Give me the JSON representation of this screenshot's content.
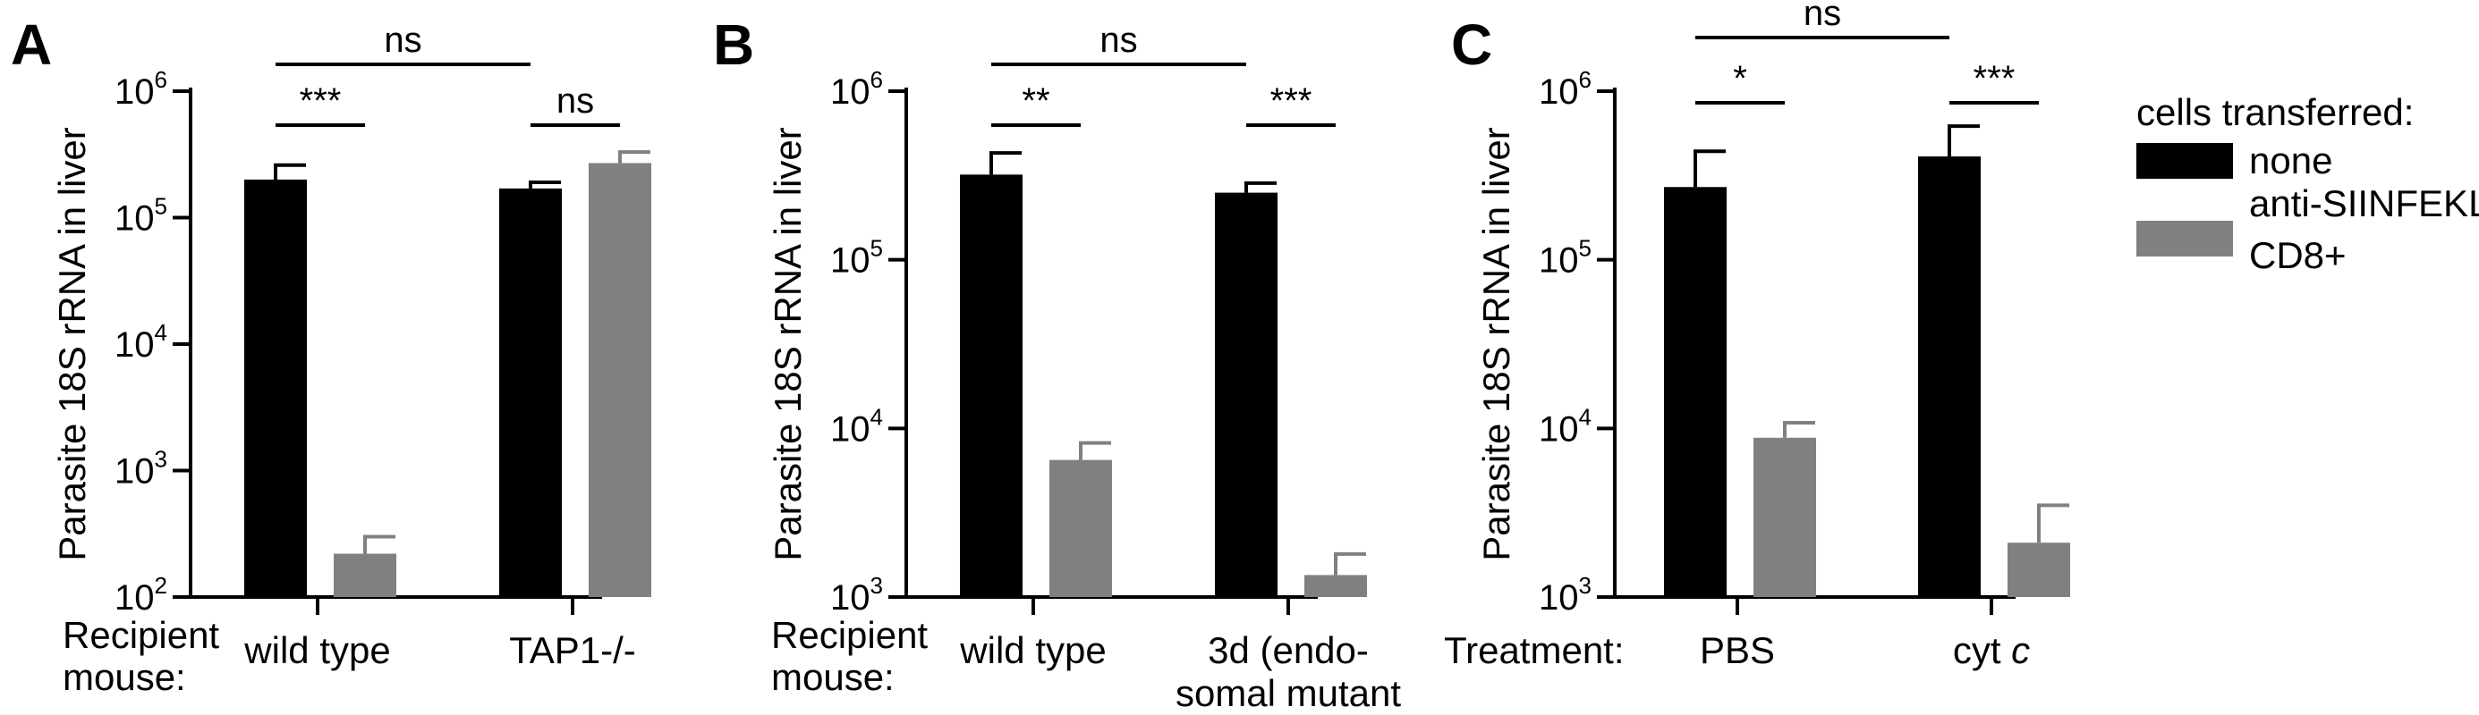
{
  "colors": {
    "none": "#000000",
    "cd8": "#808080",
    "axis": "#000000"
  },
  "legend": {
    "title": "cells transferred:",
    "entries": [
      {
        "label_lines": [
          "none"
        ],
        "color": "#000000"
      },
      {
        "label_lines": [
          "anti-SIINFEKL",
          "CD8+"
        ],
        "color": "#808080"
      }
    ]
  },
  "chart_data": [
    {
      "type": "bar",
      "panel": "A",
      "ylabel": "Parasite 18S rRNA in liver",
      "yscale": "log",
      "ylim": [
        100,
        1000000
      ],
      "yticks": [
        {
          "base": "10",
          "exp": "2",
          "value": 100
        },
        {
          "base": "10",
          "exp": "3",
          "value": 1000
        },
        {
          "base": "10",
          "exp": "4",
          "value": 10000
        },
        {
          "base": "10",
          "exp": "5",
          "value": 100000
        },
        {
          "base": "10",
          "exp": "6",
          "value": 1000000
        }
      ],
      "xcaption_lines": [
        "Recipient",
        "mouse:"
      ],
      "categories": [
        {
          "lines": [
            {
              "text": "wild type",
              "italic": ""
            }
          ]
        },
        {
          "lines": [
            {
              "text": "TAP1-/-",
              "italic": ""
            }
          ]
        }
      ],
      "series": [
        {
          "name": "none",
          "color": "#000000",
          "values": [
            200000,
            170000
          ],
          "errors": [
            260000,
            190000
          ]
        },
        {
          "name": "anti-SIINFEKL CD8+",
          "color": "#808080",
          "values": [
            220,
            270000
          ],
          "errors": [
            300,
            330000
          ]
        }
      ],
      "significance": [
        {
          "label": "***",
          "from": [
            0,
            0
          ],
          "to": [
            0,
            1
          ],
          "level": 1
        },
        {
          "label": "ns",
          "from": [
            1,
            0
          ],
          "to": [
            1,
            1
          ],
          "level": 1
        },
        {
          "label": "ns",
          "from": [
            0,
            0
          ],
          "to": [
            1,
            0
          ],
          "level": 2
        }
      ]
    },
    {
      "type": "bar",
      "panel": "B",
      "ylabel": "Parasite 18S rRNA in liver",
      "yscale": "log",
      "ylim": [
        1000,
        1000000
      ],
      "yticks": [
        {
          "base": "10",
          "exp": "3",
          "value": 1000
        },
        {
          "base": "10",
          "exp": "4",
          "value": 10000
        },
        {
          "base": "10",
          "exp": "5",
          "value": 100000
        },
        {
          "base": "10",
          "exp": "6",
          "value": 1000000
        }
      ],
      "xcaption_lines": [
        "Recipient",
        "mouse:"
      ],
      "categories": [
        {
          "lines": [
            {
              "text": "wild type",
              "italic": ""
            }
          ]
        },
        {
          "lines": [
            {
              "text": "3d (endo-",
              "italic": ""
            },
            {
              "text": "somal mutant",
              "italic": ""
            }
          ]
        }
      ],
      "series": [
        {
          "name": "none",
          "color": "#000000",
          "values": [
            320000,
            250000
          ],
          "errors": [
            430000,
            285000
          ]
        },
        {
          "name": "anti-SIINFEKL CD8+",
          "color": "#808080",
          "values": [
            6500,
            1350
          ],
          "errors": [
            8200,
            1800
          ]
        }
      ],
      "significance": [
        {
          "label": "**",
          "from": [
            0,
            0
          ],
          "to": [
            0,
            1
          ],
          "level": 1
        },
        {
          "label": "***",
          "from": [
            1,
            0
          ],
          "to": [
            1,
            1
          ],
          "level": 1
        },
        {
          "label": "ns",
          "from": [
            0,
            0
          ],
          "to": [
            1,
            0
          ],
          "level": 2
        }
      ]
    },
    {
      "type": "bar",
      "panel": "C",
      "ylabel": "Parasite 18S rRNA in liver",
      "yscale": "log",
      "ylim": [
        1000,
        1000000
      ],
      "yticks": [
        {
          "base": "10",
          "exp": "3",
          "value": 1000
        },
        {
          "base": "10",
          "exp": "4",
          "value": 10000
        },
        {
          "base": "10",
          "exp": "5",
          "value": 100000
        },
        {
          "base": "10",
          "exp": "6",
          "value": 1000000
        }
      ],
      "xcaption_lines": [
        "Treatment:"
      ],
      "categories": [
        {
          "lines": [
            {
              "text": "PBS",
              "italic": ""
            }
          ]
        },
        {
          "lines": [
            {
              "text": "cyt",
              "italic": "c"
            }
          ]
        }
      ],
      "series": [
        {
          "name": "none",
          "color": "#000000",
          "values": [
            270000,
            410000
          ],
          "errors": [
            440000,
            620000
          ]
        },
        {
          "name": "anti-SIINFEKL CD8+",
          "color": "#808080",
          "values": [
            8800,
            2100
          ],
          "errors": [
            10800,
            3500
          ]
        }
      ],
      "significance": [
        {
          "label": "*",
          "from": [
            0,
            0
          ],
          "to": [
            0,
            1
          ],
          "level": 1
        },
        {
          "label": "***",
          "from": [
            1,
            0
          ],
          "to": [
            1,
            1
          ],
          "level": 1
        },
        {
          "label": "ns",
          "from": [
            0,
            0
          ],
          "to": [
            1,
            0
          ],
          "level": 2
        }
      ]
    }
  ]
}
